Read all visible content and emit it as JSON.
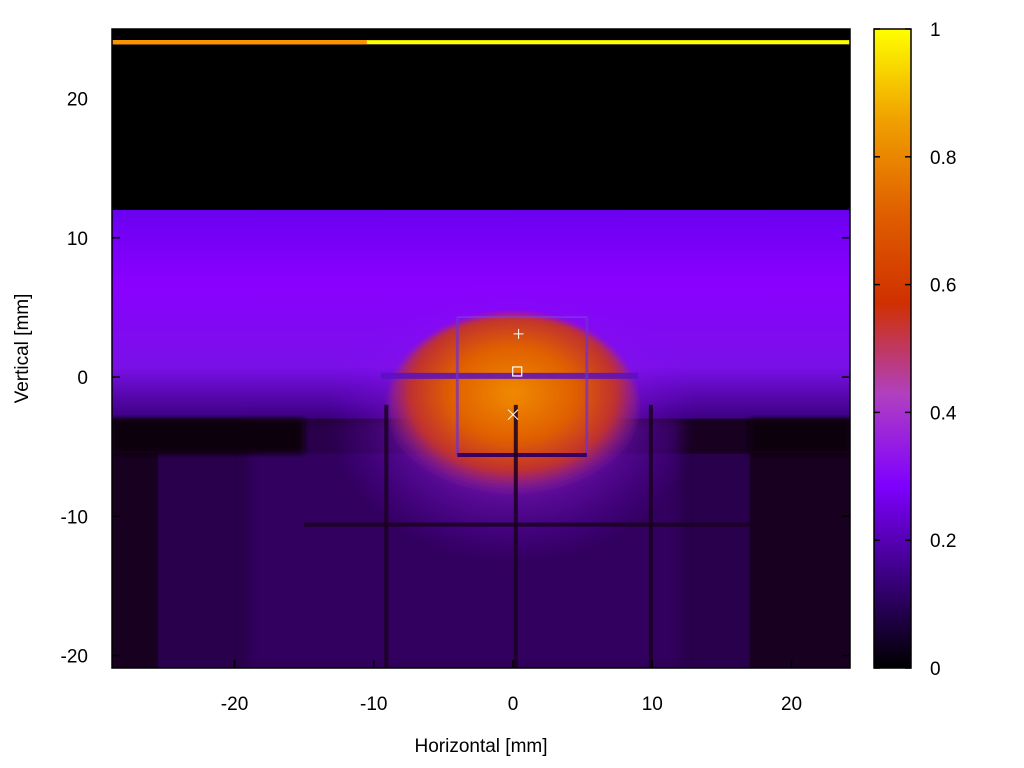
{
  "chart_data": {
    "type": "heatmap",
    "title": "",
    "xlabel": "Horizontal [mm]",
    "ylabel": "Vertical [mm]",
    "xlim": [
      -28.8,
      24.2
    ],
    "ylim": [
      -20.9,
      25
    ],
    "x_ticks": [
      -20,
      -10,
      0,
      10,
      20
    ],
    "y_ticks": [
      -20,
      -10,
      0,
      10,
      20
    ],
    "colorbar": {
      "range": [
        0,
        1
      ],
      "ticks": [
        0,
        0.2,
        0.4,
        0.6,
        0.8,
        1
      ],
      "tick_labels": [
        "0",
        "0.2",
        "0.4",
        "0.6",
        "0.8",
        "1"
      ],
      "colormap": [
        "#000000",
        "#3a0080",
        "#7f00ff",
        "#b040c0",
        "#d03000",
        "#e06000",
        "#f0a000",
        "#ffff00"
      ]
    },
    "grid": false,
    "legend": "none",
    "markers": [
      {
        "name": "plus",
        "symbol": "+",
        "x": 0.4,
        "y": 3.1
      },
      {
        "name": "square",
        "symbol": "□",
        "x": 0.3,
        "y": 0.4
      },
      {
        "name": "cross",
        "symbol": "×",
        "x": 0.0,
        "y": -2.7
      }
    ],
    "regions": [
      {
        "name": "top-bright-edge",
        "x": [
          -28.8,
          24.2
        ],
        "y": [
          23.9,
          24.2
        ],
        "value": 0.95
      },
      {
        "name": "dark-upper-area",
        "x": [
          -28.8,
          24.2
        ],
        "y": [
          12,
          23.9
        ],
        "value": 0.0
      },
      {
        "name": "purple-band",
        "x": [
          -28.8,
          24.2
        ],
        "y": [
          -3,
          12
        ],
        "value": 0.28
      },
      {
        "name": "lower-dim-area",
        "x": [
          -28.8,
          24.2
        ],
        "y": [
          -20.9,
          -3
        ],
        "value": 0.06
      },
      {
        "name": "orange-core",
        "x": [
          -9,
          9
        ],
        "y": [
          -9,
          4.5
        ],
        "value": 0.62
      }
    ]
  }
}
